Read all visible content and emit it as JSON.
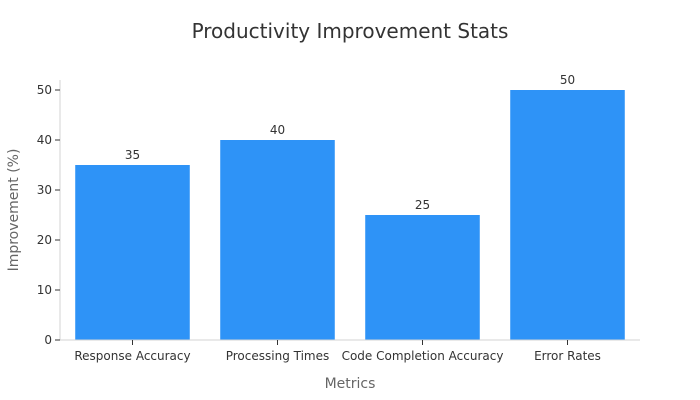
{
  "chart_data": {
    "type": "bar",
    "title": "Productivity Improvement Stats",
    "xlabel": "Metrics",
    "ylabel": "Improvement (%)",
    "categories": [
      "Response Accuracy",
      "Processing Times",
      "Code Completion Accuracy",
      "Error Rates"
    ],
    "values": [
      35,
      40,
      25,
      50
    ],
    "ylim": [
      0,
      52
    ],
    "yticks": [
      0,
      10,
      20,
      30,
      40,
      50
    ],
    "grid": false,
    "bar_color": "#2e93f7"
  }
}
